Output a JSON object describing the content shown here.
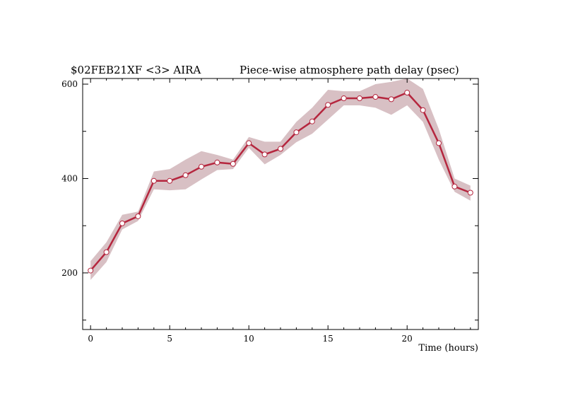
{
  "chart_data": {
    "type": "line",
    "title_left": "$02FEB21XF <3>  AIRA",
    "title_right": "Piece-wise atmosphere path delay (psec)",
    "xlabel": "Time (hours)",
    "ylabel": "",
    "xlim": [
      -0.5,
      24.5
    ],
    "ylim": [
      80,
      612
    ],
    "x_ticks": [
      0,
      5,
      10,
      15,
      20
    ],
    "y_ticks": [
      200,
      400,
      600
    ],
    "grid": false,
    "series": [
      {
        "x": [
          0,
          1,
          2,
          3,
          4,
          5,
          6,
          7,
          8,
          9,
          10,
          11,
          12,
          13,
          14,
          15,
          16,
          17,
          18,
          19,
          20,
          21,
          22,
          23,
          24
        ],
        "values": [
          205,
          244,
          305,
          320,
          395,
          395,
          407,
          425,
          434,
          431,
          475,
          451,
          463,
          498,
          521,
          556,
          570,
          570,
          573,
          568,
          582,
          545,
          475,
          383,
          370
        ],
        "band_upper": [
          225,
          265,
          323,
          330,
          415,
          420,
          440,
          458,
          450,
          440,
          488,
          478,
          478,
          520,
          550,
          588,
          585,
          585,
          600,
          605,
          612,
          590,
          505,
          400,
          385
        ],
        "band_lower": [
          185,
          223,
          292,
          310,
          377,
          375,
          377,
          398,
          418,
          420,
          465,
          430,
          450,
          477,
          495,
          525,
          555,
          555,
          550,
          535,
          555,
          520,
          440,
          372,
          353
        ]
      }
    ],
    "colors": {
      "line": "#b5263e",
      "band": "#d8c0c4",
      "marker_fill": "#ffffff"
    }
  }
}
